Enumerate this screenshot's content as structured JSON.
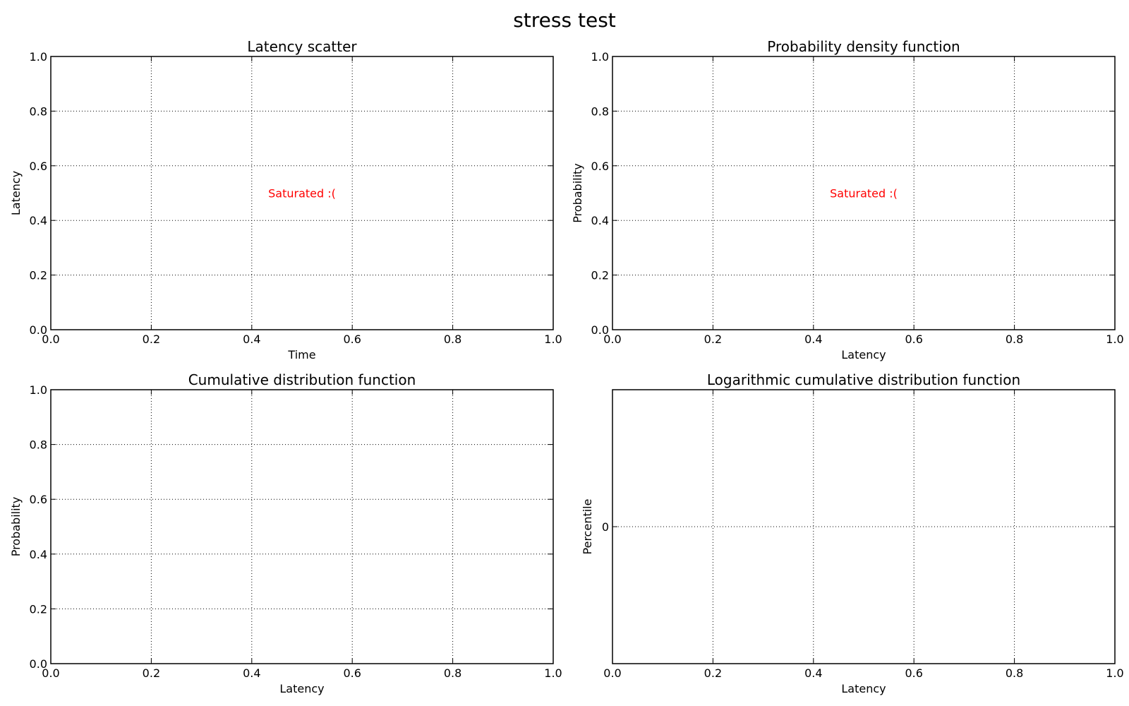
{
  "figure": {
    "title": "stress test"
  },
  "chart_data": [
    {
      "type": "scatter",
      "title": "Latency scatter",
      "xlabel": "Time",
      "ylabel": "Latency",
      "xlim": [
        0,
        1
      ],
      "ylim": [
        0,
        1
      ],
      "xticks": [
        "0.0",
        "0.2",
        "0.4",
        "0.6",
        "0.8",
        "1.0"
      ],
      "yticks": [
        "0.0",
        "0.2",
        "0.4",
        "0.6",
        "0.8",
        "1.0"
      ],
      "grid": true,
      "annotation": {
        "text": "Saturated :(",
        "x": 0.5,
        "y": 0.5,
        "color": "#ff0000"
      },
      "series": []
    },
    {
      "type": "line",
      "title": "Probability density function",
      "xlabel": "Latency",
      "ylabel": "Probability",
      "xlim": [
        0,
        1
      ],
      "ylim": [
        0,
        1
      ],
      "xticks": [
        "0.0",
        "0.2",
        "0.4",
        "0.6",
        "0.8",
        "1.0"
      ],
      "yticks": [
        "0.0",
        "0.2",
        "0.4",
        "0.6",
        "0.8",
        "1.0"
      ],
      "grid": true,
      "annotation": {
        "text": "Saturated :(",
        "x": 0.5,
        "y": 0.5,
        "color": "#ff0000"
      },
      "series": []
    },
    {
      "type": "line",
      "title": "Cumulative distribution function",
      "xlabel": "Latency",
      "ylabel": "Probability",
      "xlim": [
        0,
        1
      ],
      "ylim": [
        0,
        1
      ],
      "xticks": [
        "0.0",
        "0.2",
        "0.4",
        "0.6",
        "0.8",
        "1.0"
      ],
      "yticks": [
        "0.0",
        "0.2",
        "0.4",
        "0.6",
        "0.8",
        "1.0"
      ],
      "grid": true,
      "annotation": null,
      "series": []
    },
    {
      "type": "line",
      "title": "Logarithmic cumulative distribution function",
      "xlabel": "Latency",
      "ylabel": "Percentile",
      "xlim": [
        0,
        1
      ],
      "xticks": [
        "0.0",
        "0.2",
        "0.4",
        "0.6",
        "0.8",
        "1.0"
      ],
      "yticks": [
        "0"
      ],
      "grid": true,
      "annotation": null,
      "series": []
    }
  ]
}
